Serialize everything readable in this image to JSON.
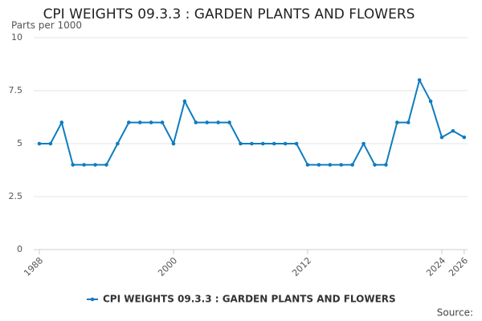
{
  "chart_data": {
    "type": "line",
    "title": "CPI WEIGHTS 09.3.3 : GARDEN PLANTS AND FLOWERS",
    "y_label": "Parts per 1000",
    "source": "Source:",
    "x": [
      1988,
      1989,
      1990,
      1991,
      1992,
      1993,
      1994,
      1995,
      1996,
      1997,
      1998,
      1999,
      2000,
      2001,
      2002,
      2003,
      2004,
      2005,
      2006,
      2007,
      2008,
      2009,
      2010,
      2011,
      2012,
      2013,
      2014,
      2015,
      2016,
      2017,
      2018,
      2019,
      2020,
      2021,
      2022,
      2023,
      2024,
      2025,
      2026
    ],
    "series": [
      {
        "name": "CPI WEIGHTS 09.3.3 : GARDEN PLANTS AND FLOWERS",
        "color": "#0f7cbf",
        "values": [
          5,
          5,
          6,
          4,
          4,
          4,
          4,
          5,
          6,
          6,
          6,
          6,
          5,
          7,
          6,
          6,
          6,
          6,
          5,
          5,
          5,
          5,
          5,
          5,
          4,
          4,
          4,
          4,
          4,
          5,
          4,
          4,
          6,
          6,
          8,
          7,
          5.3,
          5.6,
          5.3
        ]
      }
    ],
    "xlim": [
      1987.5,
      2026.3
    ],
    "xticks": [
      1988,
      2000,
      2012,
      2024,
      2026
    ],
    "ylim": [
      0,
      10
    ],
    "yticks": [
      0,
      2.5,
      5,
      7.5,
      10
    ],
    "grid": true
  }
}
